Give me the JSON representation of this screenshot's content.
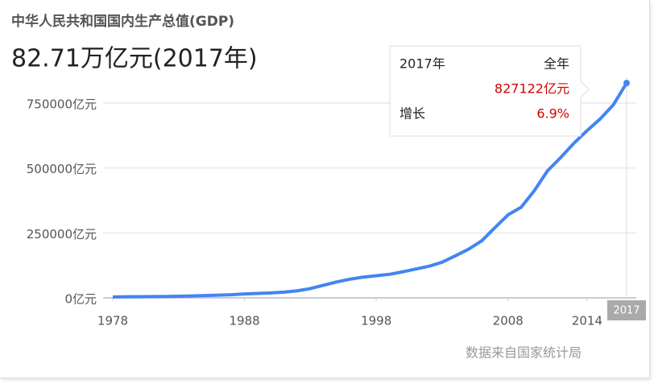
{
  "chart_data": {
    "type": "line",
    "title": "中华人民共和国国内生产总值(GDP)",
    "subtitle": "82.71万亿元(2017年)",
    "source": "数据来自国家统计局",
    "x": [
      1978,
      1979,
      1980,
      1981,
      1982,
      1983,
      1984,
      1985,
      1986,
      1987,
      1988,
      1989,
      1990,
      1991,
      1992,
      1993,
      1994,
      1995,
      1996,
      1997,
      1998,
      1999,
      2000,
      2001,
      2002,
      2003,
      2004,
      2005,
      2006,
      2007,
      2008,
      2009,
      2010,
      2011,
      2012,
      2013,
      2014,
      2015,
      2016,
      2017
    ],
    "xlim": [
      1978,
      2017
    ],
    "xticks": [
      1978,
      1988,
      1998,
      2008,
      2014
    ],
    "series": [
      {
        "name": "国内生产总值",
        "color": "#4285f4",
        "values": [
          3679,
          4101,
          4588,
          4936,
          5373,
          6021,
          7279,
          9099,
          10376,
          12175,
          15180,
          17180,
          18873,
          22006,
          27195,
          35673,
          48638,
          61340,
          71814,
          79715,
          85196,
          90564,
          100280,
          110863,
          121717,
          137422,
          161840,
          187319,
          219439,
          270232,
          319516,
          349081,
          413030,
          489301,
          540367,
          595244,
          643974,
          689052,
          743586,
          827122
        ]
      }
    ],
    "ylim": [
      0,
      750000
    ],
    "yticks": [
      {
        "value": 0,
        "label": "0亿元"
      },
      {
        "value": 250000,
        "label": "250000亿元"
      },
      {
        "value": 500000,
        "label": "500000亿元"
      },
      {
        "value": 750000,
        "label": "750000亿元"
      }
    ],
    "grid": true,
    "tooltip": {
      "x_label": "2017年",
      "period": "全年",
      "value_label": "827122亿元",
      "growth_name": "增长",
      "growth": 6.9,
      "growth_label": "6.9%"
    }
  }
}
